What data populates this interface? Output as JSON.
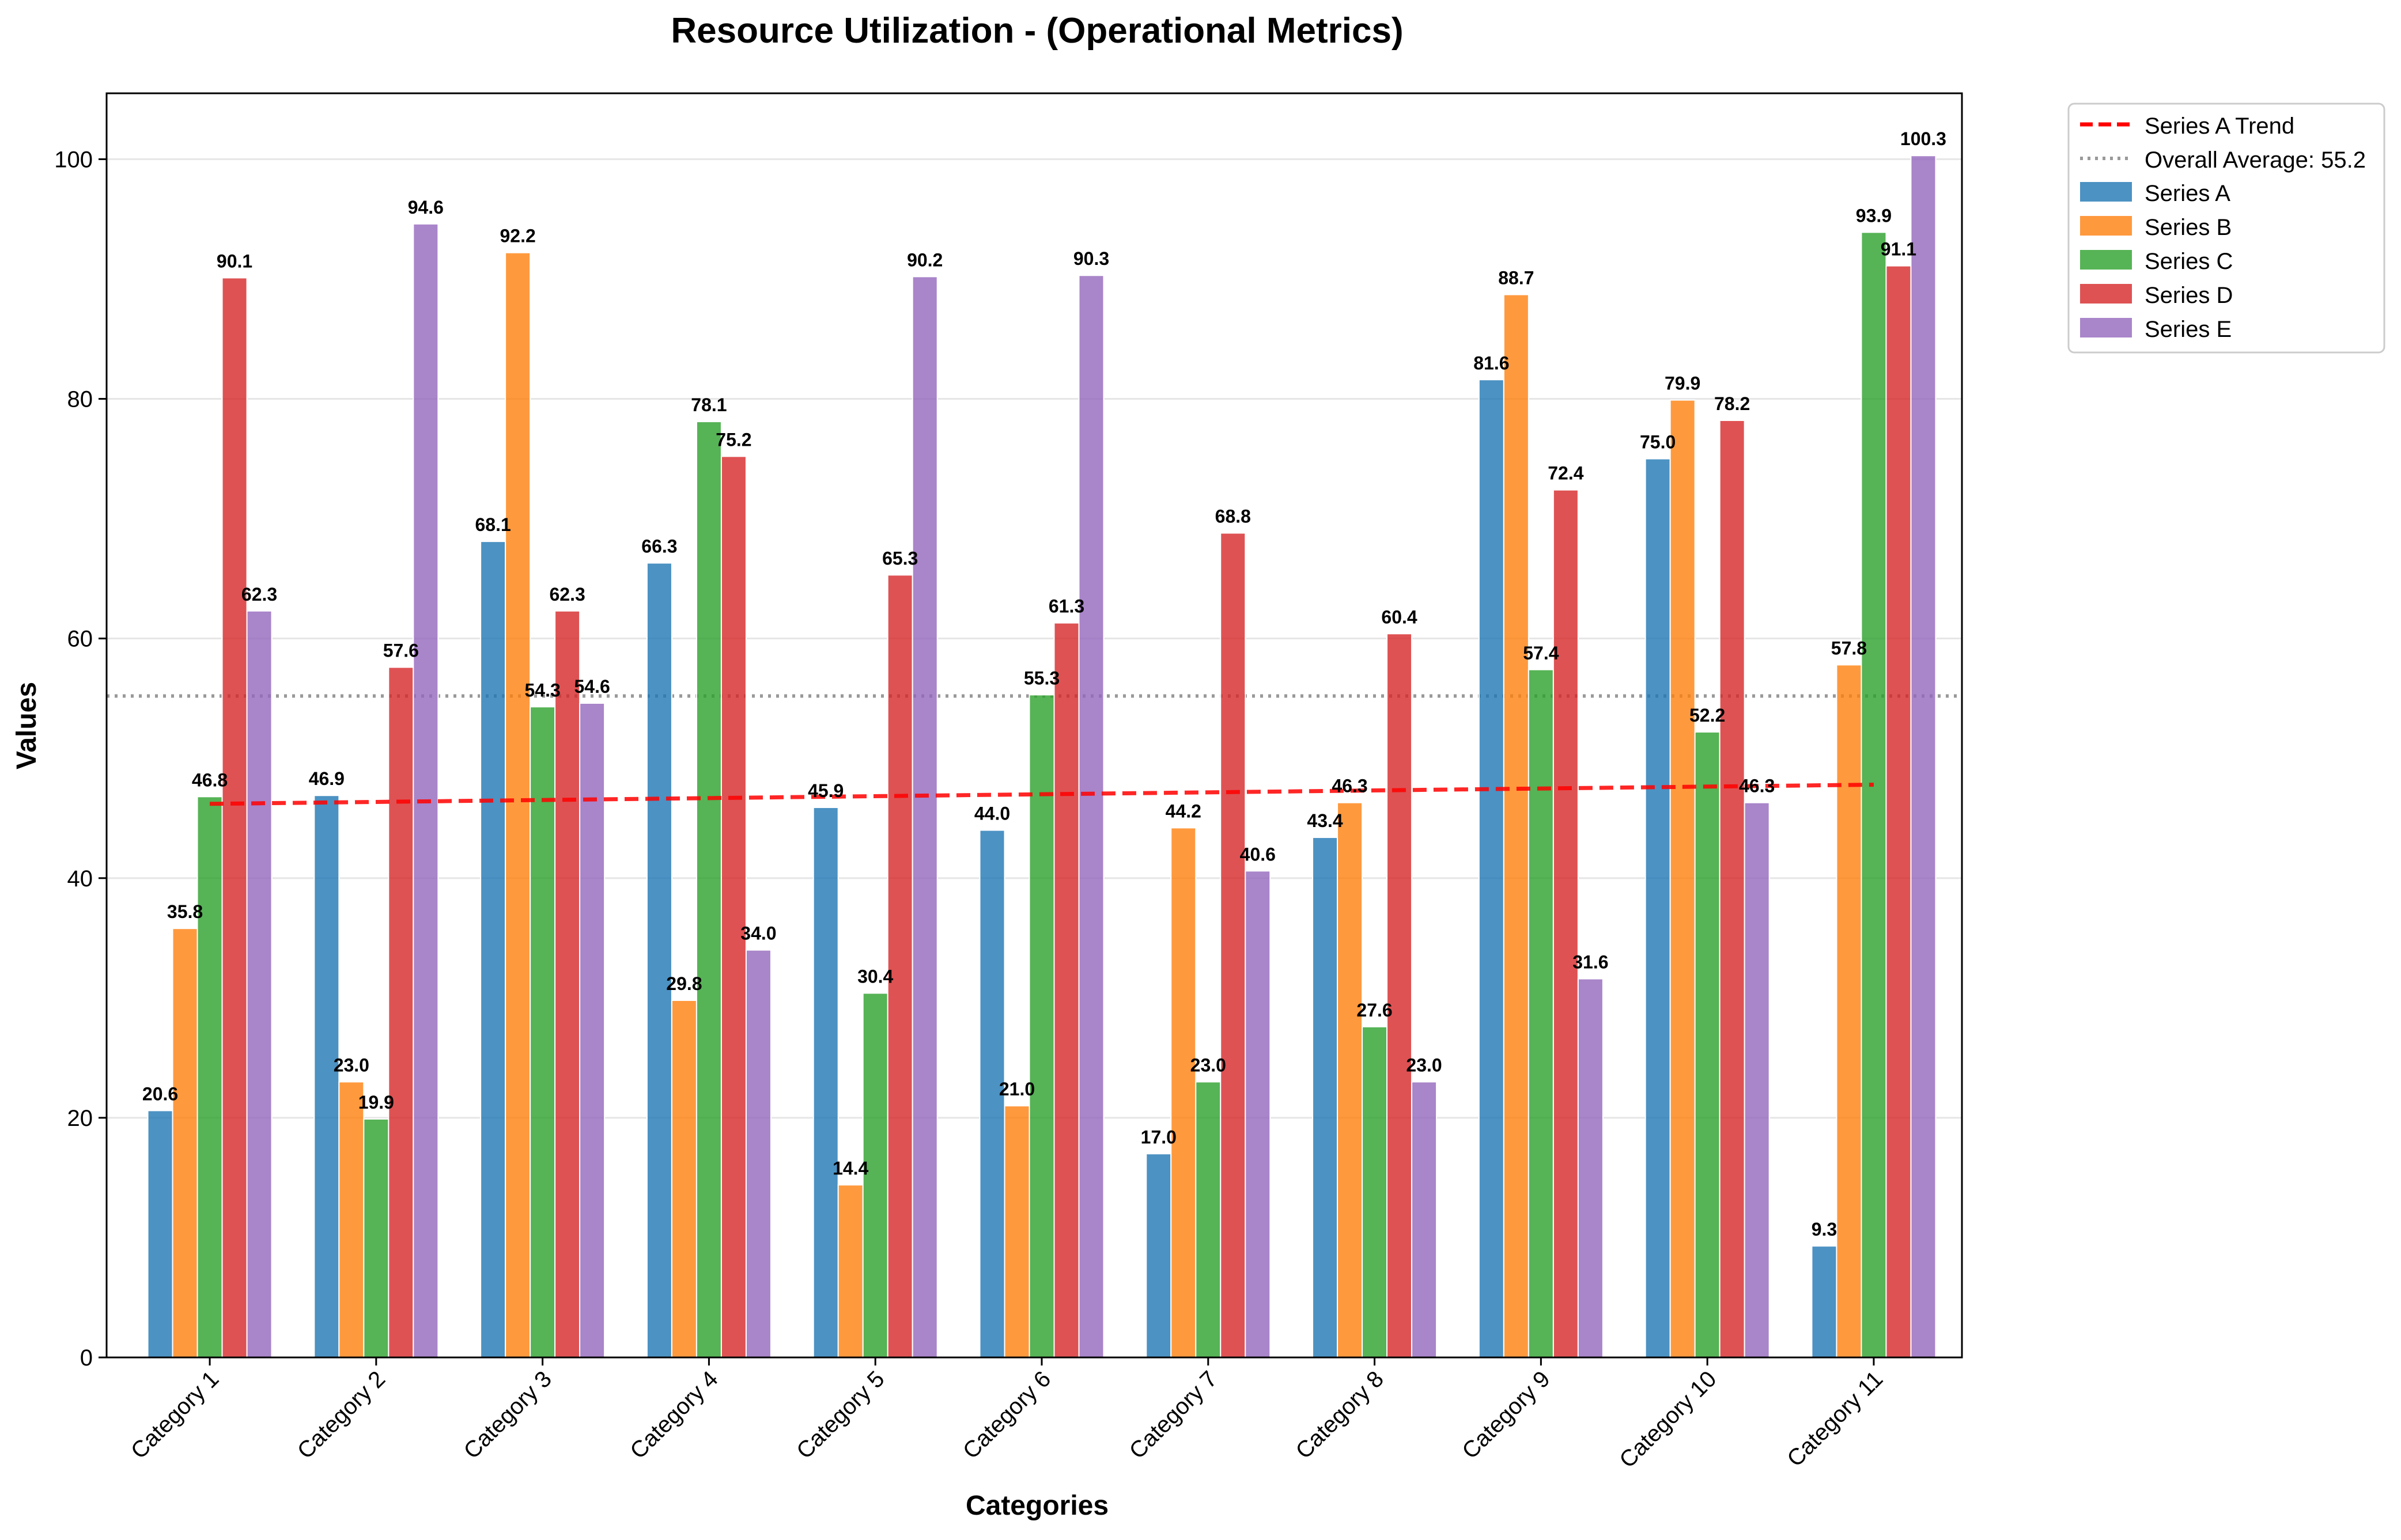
{
  "chart_data": {
    "type": "bar",
    "title": "Resource Utilization - (Operational Metrics)",
    "xlabel": "Categories",
    "ylabel": "Values",
    "ylim": [
      0,
      105.5
    ],
    "yticks": [
      0,
      20,
      40,
      60,
      80,
      100
    ],
    "grid": true,
    "legend_position": "top-right",
    "categories": [
      "Category 1",
      "Category 2",
      "Category 3",
      "Category 4",
      "Category 5",
      "Category 6",
      "Category 7",
      "Category 8",
      "Category 9",
      "Category 10",
      "Category 11"
    ],
    "series": [
      {
        "name": "Series A",
        "color": "#1f77b4",
        "values": [
          20.6,
          46.9,
          68.1,
          66.3,
          45.9,
          44.0,
          17.0,
          43.4,
          81.6,
          75.0,
          9.3
        ]
      },
      {
        "name": "Series B",
        "color": "#ff7f0e",
        "values": [
          35.8,
          23.0,
          92.2,
          29.8,
          14.4,
          21.0,
          44.2,
          46.3,
          88.7,
          79.9,
          57.8
        ]
      },
      {
        "name": "Series C",
        "color": "#2ca02c",
        "values": [
          46.8,
          19.9,
          54.3,
          78.1,
          30.4,
          55.3,
          23.0,
          27.6,
          57.4,
          52.2,
          93.9
        ]
      },
      {
        "name": "Series D",
        "color": "#d62728",
        "values": [
          90.1,
          57.6,
          62.3,
          75.2,
          65.3,
          61.3,
          68.8,
          60.4,
          72.4,
          78.2,
          91.1
        ]
      },
      {
        "name": "Series E",
        "color": "#9467bd",
        "values": [
          62.3,
          94.6,
          54.6,
          34.0,
          90.2,
          90.3,
          40.6,
          23.0,
          31.6,
          46.3,
          100.3
        ]
      }
    ],
    "trend": {
      "name": "Series A Trend",
      "color": "#ff0000",
      "start": 46.2,
      "end": 47.8
    },
    "average": {
      "name": "Overall Average: 55.2",
      "value": 55.2,
      "color": "#999999"
    }
  }
}
